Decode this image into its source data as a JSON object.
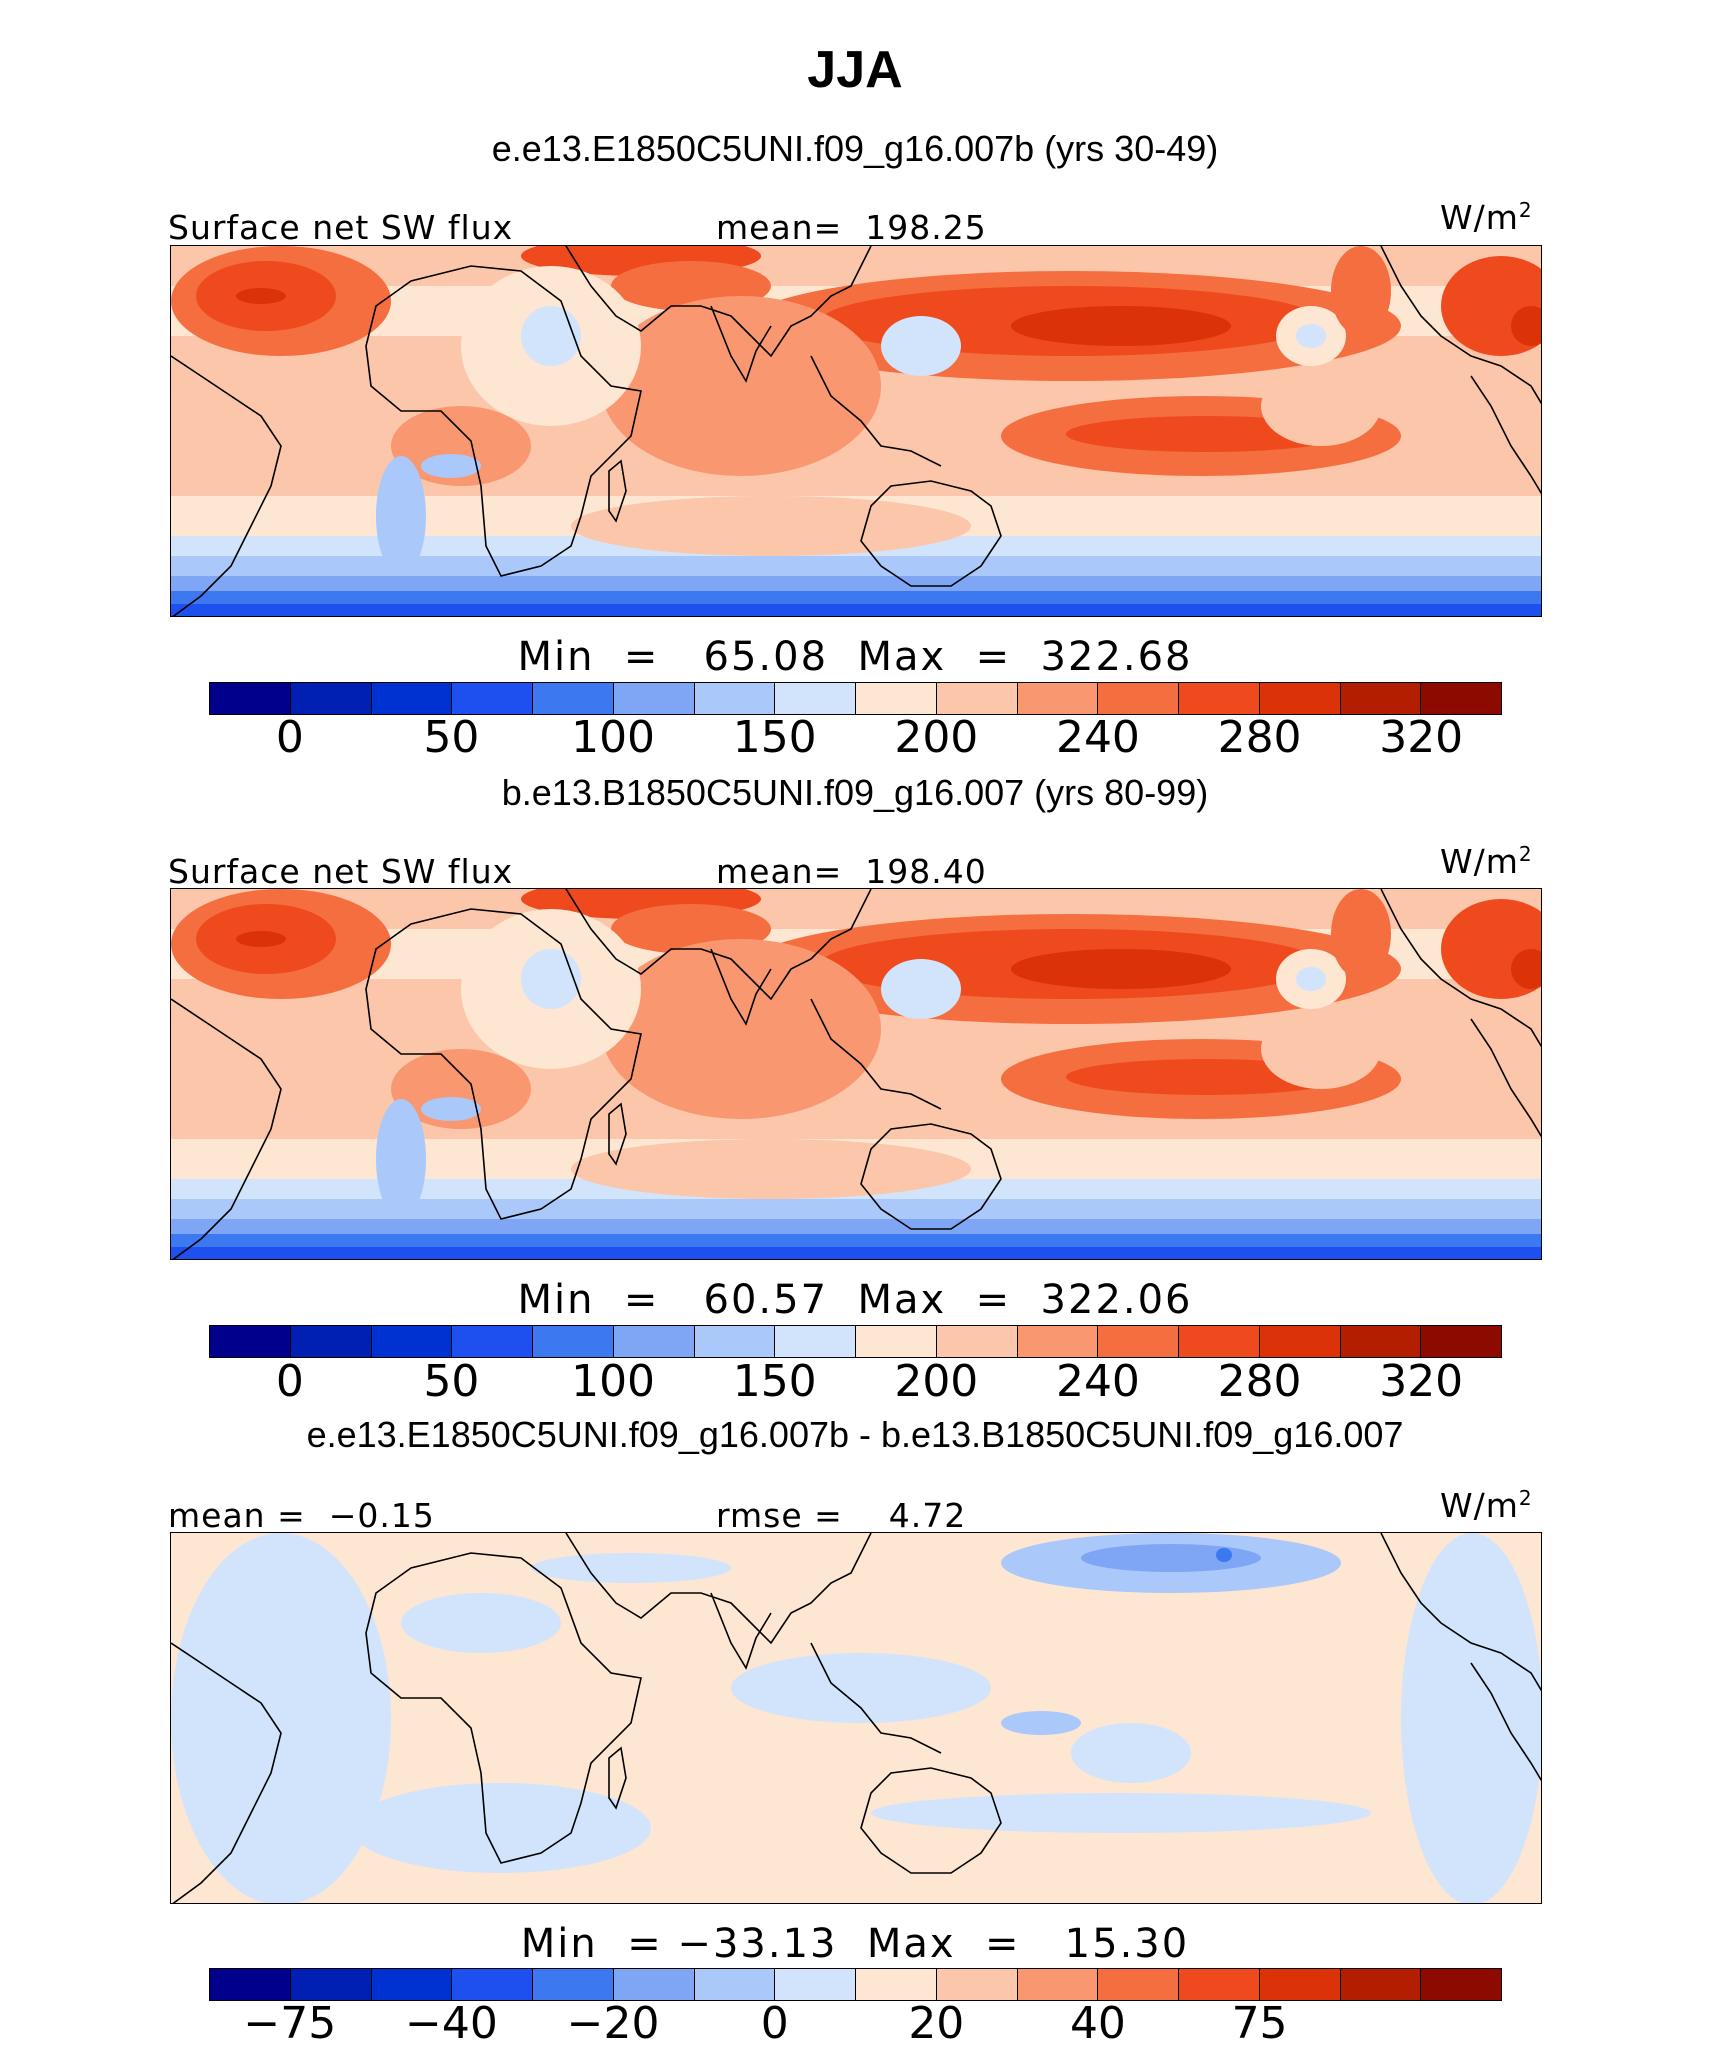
{
  "title": "JJA",
  "units_base": "W/m",
  "units_exp": "2",
  "palette": [
    "#00008c",
    "#0020b4",
    "#0032d2",
    "#1e50f0",
    "#3c78f0",
    "#7ea6f5",
    "#aac8fa",
    "#d2e4fc",
    "#fde6d2",
    "#fcc6aa",
    "#f99770",
    "#f56e3f",
    "#ee4a1e",
    "#dc3208",
    "#b41e00",
    "#8c0a00"
  ],
  "panels": [
    {
      "run_title": "e.e13.E1850C5UNI.f09_g16.007b (yrs 30-49)",
      "left_label": "Surface net SW flux",
      "center_label": "mean=  198.25",
      "minmax": "Min  =   65.08  Max  =  322.68",
      "ticks": [
        "0",
        "50",
        "100",
        "150",
        "200",
        "240",
        "280",
        "320"
      ],
      "field": "control"
    },
    {
      "run_title": "b.e13.B1850C5UNI.f09_g16.007 (yrs 80-99)",
      "left_label": "Surface net SW flux",
      "center_label": "mean=  198.40",
      "minmax": "Min  =   60.57  Max  =  322.06",
      "ticks": [
        "0",
        "50",
        "100",
        "150",
        "200",
        "240",
        "280",
        "320"
      ],
      "field": "experiment"
    },
    {
      "run_title": "e.e13.E1850C5UNI.f09_g16.007b - b.e13.B1850C5UNI.f09_g16.007",
      "left_label": "mean =  −0.15",
      "center_label": "rmse =    4.72",
      "minmax": "Min  = −33.13  Max  =   15.30",
      "ticks": [
        "−75",
        "−40",
        "−20",
        "0",
        "20",
        "40",
        "75"
      ],
      "field": "difference"
    }
  ],
  "chart_data": [
    {
      "type": "heatmap",
      "title": "e.e13.E1850C5UNI.f09_g16.007b (yrs 30-49)",
      "variable": "Surface net SW flux",
      "units": "W/m2",
      "season": "JJA",
      "mean": 198.25,
      "min": 65.08,
      "max": 322.68,
      "colorbar_ticks": [
        0,
        50,
        100,
        150,
        200,
        240,
        280,
        320
      ]
    },
    {
      "type": "heatmap",
      "title": "b.e13.B1850C5UNI.f09_g16.007 (yrs 80-99)",
      "variable": "Surface net SW flux",
      "units": "W/m2",
      "season": "JJA",
      "mean": 198.4,
      "min": 60.57,
      "max": 322.06,
      "colorbar_ticks": [
        0,
        50,
        100,
        150,
        200,
        240,
        280,
        320
      ]
    },
    {
      "type": "heatmap",
      "title": "e.e13.E1850C5UNI.f09_g16.007b - b.e13.B1850C5UNI.f09_g16.007",
      "units": "W/m2",
      "season": "JJA",
      "mean": -0.15,
      "rmse": 4.72,
      "min": -33.13,
      "max": 15.3,
      "colorbar_ticks": [
        -75,
        -40,
        -20,
        0,
        20,
        40,
        75
      ]
    }
  ]
}
